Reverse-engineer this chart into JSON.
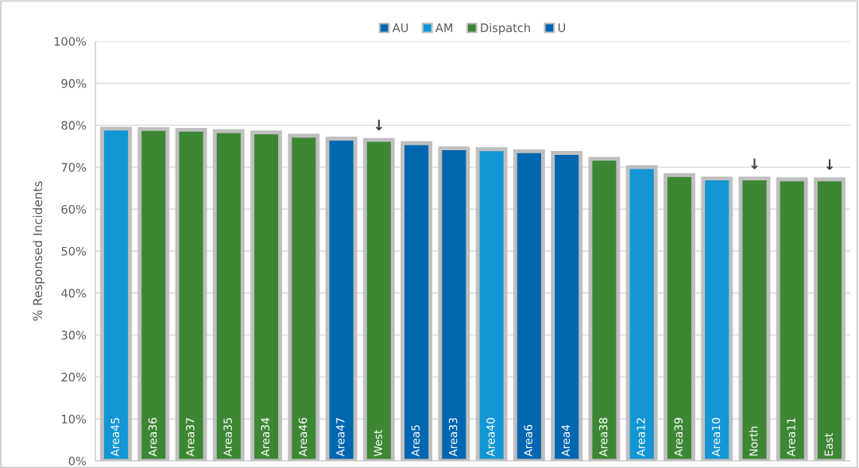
{
  "chart_data": {
    "type": "bar",
    "ylabel": "% Responsed Incidents",
    "categories": [
      "Area45",
      "Area36",
      "Area37",
      "Area35",
      "Area34",
      "Area46",
      "Area47",
      "West",
      "Area5",
      "Area33",
      "Area40",
      "Area6",
      "Area4",
      "Area38",
      "Area12",
      "Area39",
      "Area10",
      "North",
      "Area11",
      "East"
    ],
    "series": [
      {
        "name": "AU",
        "color": "#0066b0",
        "values": [
          null,
          null,
          null,
          null,
          null,
          null,
          76.8,
          null,
          75.7,
          74.5,
          null,
          73.8,
          73.4,
          null,
          null,
          null,
          null,
          null,
          null,
          null
        ]
      },
      {
        "name": "AM",
        "color": "#1296d4",
        "values": [
          79.2,
          null,
          null,
          null,
          null,
          null,
          null,
          null,
          null,
          null,
          74.3,
          null,
          null,
          null,
          70.0,
          null,
          67.3,
          null,
          null,
          null
        ]
      },
      {
        "name": "Dispatch",
        "color": "#3d8734",
        "values": [
          null,
          79.1,
          78.9,
          78.6,
          78.3,
          77.5,
          null,
          76.5,
          null,
          null,
          null,
          null,
          null,
          72.0,
          null,
          68.1,
          null,
          67.3,
          67.1,
          67.1
        ]
      },
      {
        "name": "U",
        "color": "#0066b0",
        "values": [
          null,
          null,
          null,
          null,
          null,
          null,
          null,
          null,
          null,
          null,
          null,
          null,
          null,
          null,
          null,
          null,
          null,
          null,
          null,
          null
        ]
      }
    ],
    "ylim": [
      0,
      100
    ],
    "yticks": [
      {
        "value": 0,
        "label": "0%"
      },
      {
        "value": 10,
        "label": "10%"
      },
      {
        "value": 20,
        "label": "20%"
      },
      {
        "value": 30,
        "label": "30%"
      },
      {
        "value": 40,
        "label": "40%"
      },
      {
        "value": 50,
        "label": "50%"
      },
      {
        "value": 60,
        "label": "60%"
      },
      {
        "value": 70,
        "label": "70%"
      },
      {
        "value": 80,
        "label": "80%"
      },
      {
        "value": 90,
        "label": "90%"
      },
      {
        "value": 100,
        "label": "100%"
      }
    ],
    "annotations": [
      {
        "text": "↓",
        "x": "West",
        "y": 76.5
      },
      {
        "text": "↓",
        "x": "North",
        "y": 67.3
      },
      {
        "text": "↓",
        "x": "East",
        "y": 67.1
      }
    ],
    "grid": "y",
    "legend": "top"
  }
}
